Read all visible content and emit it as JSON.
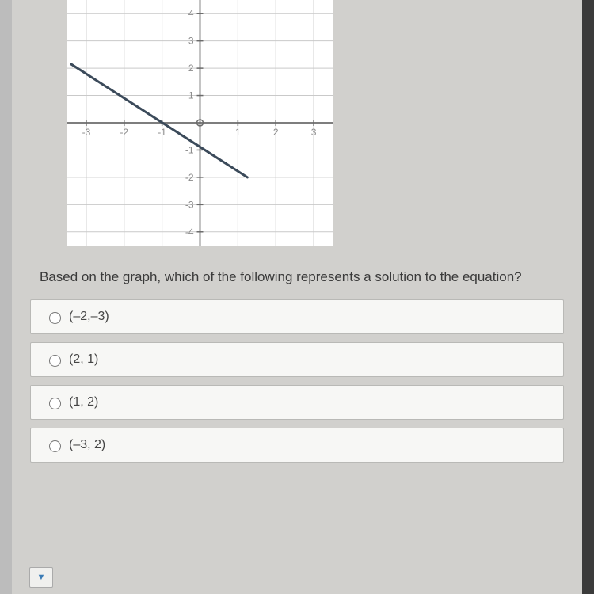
{
  "graph": {
    "xlim": [
      -3.5,
      3.5
    ],
    "ylim": [
      -4.5,
      4.5
    ],
    "xticks": [
      -3,
      -2,
      -1,
      1,
      2,
      3
    ],
    "yticks": [
      -4,
      -3,
      -2,
      -1,
      1,
      2,
      3,
      4
    ],
    "grid_color": "#c9c9c9",
    "axis_color": "#6b6b6b",
    "tick_label_color": "#8a8a8a",
    "line_color": "#3b4a5a",
    "line_width": 3,
    "line_points": [
      [
        -3.4,
        2.15
      ],
      [
        1.25,
        -2
      ]
    ],
    "background": "#ffffff",
    "tick_fontsize": 12
  },
  "question": "Based on the graph, which of the following represents a solution to the equation?",
  "options": [
    {
      "label": "(–2,–3)"
    },
    {
      "label": "(2, 1)"
    },
    {
      "label": "(1, 2)"
    },
    {
      "label": "(–3, 2)"
    }
  ],
  "footer_arrow": "▼"
}
